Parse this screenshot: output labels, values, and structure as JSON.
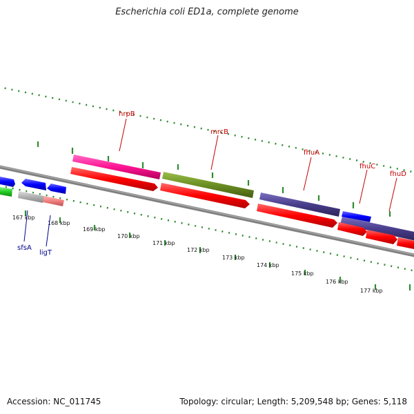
{
  "title": "Escherichia coli ED1a, complete genome",
  "accession": "Accession: NC_011745",
  "summary": "Topology: circular; Length: 5,209,548 bp; Genes: 5,118",
  "ruler_labels": [
    "167 kbp",
    "168 kbp",
    "169 kbp",
    "170 kbp",
    "171 kbp",
    "172 kbp",
    "173 kbp",
    "174 kbp",
    "175 kbp",
    "176 kbp",
    "177 kbp"
  ],
  "gene_labels_top": [
    "hrpB",
    "mrcB",
    "fhuA",
    "fhuC",
    "fhuD"
  ],
  "gene_labels_bottom": [
    "sfsA",
    "ligT"
  ],
  "colors": {
    "backbone": "#808080",
    "cds": "#ff0000",
    "pink": "#ff1493",
    "olive": "#6b8e23",
    "slate": "#483d8b",
    "blue": "#0000ff",
    "green": "#22cc22",
    "gray": "#b0b0b0",
    "salmon": "#f08080",
    "tick": "#2e8b2e"
  }
}
